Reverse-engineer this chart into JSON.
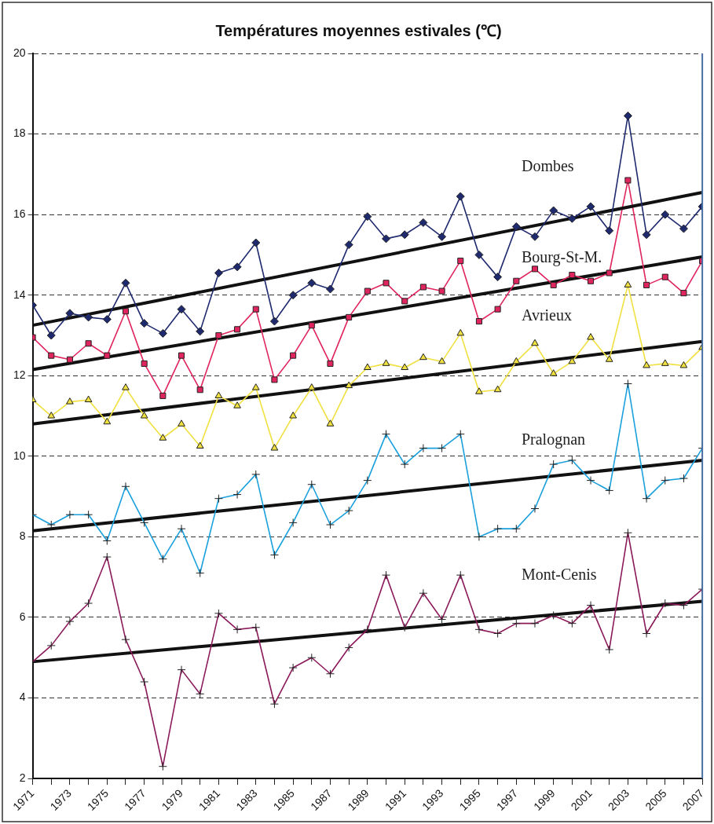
{
  "chart_data": {
    "type": "line",
    "title": "Températures moyennes estivales (℃)",
    "x": [
      1971,
      1972,
      1973,
      1974,
      1975,
      1976,
      1977,
      1978,
      1979,
      1980,
      1981,
      1982,
      1983,
      1984,
      1985,
      1986,
      1987,
      1988,
      1989,
      1990,
      1991,
      1992,
      1993,
      1994,
      1995,
      1996,
      1997,
      1998,
      1999,
      2000,
      2001,
      2002,
      2003,
      2004,
      2005,
      2006,
      2007
    ],
    "xlim": [
      1971,
      2007
    ],
    "xticks": [
      1971,
      {
        "value": 1972,
        "label": null
      },
      1973,
      {
        "value": 1974,
        "label": null
      },
      1975,
      {
        "value": 1976,
        "label": null
      },
      1977,
      {
        "value": 1978,
        "label": null
      },
      1979,
      {
        "value": 1980,
        "label": null
      },
      1981,
      {
        "value": 1982,
        "label": null
      },
      1983,
      {
        "value": 1984,
        "label": null
      },
      1985,
      {
        "value": 1986,
        "label": null
      },
      1987,
      {
        "value": 1988,
        "label": null
      },
      1989,
      {
        "value": 1990,
        "label": null
      },
      1991,
      {
        "value": 1992,
        "label": null
      },
      1993,
      {
        "value": 1994,
        "label": null
      },
      1995,
      {
        "value": 1996,
        "label": null
      },
      1997,
      {
        "value": 1998,
        "label": null
      },
      1999,
      {
        "value": 2000,
        "label": null
      },
      2001,
      {
        "value": 2002,
        "label": null
      },
      2003,
      {
        "value": 2004,
        "label": null
      },
      2005,
      {
        "value": 2006,
        "label": null
      },
      2007
    ],
    "ylim": [
      2,
      20
    ],
    "yticks": [
      2,
      4,
      6,
      8,
      10,
      12,
      14,
      16,
      18,
      20
    ],
    "grid": "y",
    "legend": false,
    "series": [
      {
        "name": "Dombes",
        "color": "#1f2a6e",
        "marker": "diamond",
        "values": [
          13.75,
          13.0,
          13.55,
          13.45,
          13.4,
          14.3,
          13.3,
          13.05,
          13.65,
          13.1,
          14.55,
          14.7,
          15.3,
          13.35,
          14.0,
          14.3,
          14.15,
          15.25,
          15.95,
          15.4,
          15.5,
          15.8,
          15.45,
          16.45,
          15.0,
          14.45,
          15.7,
          15.45,
          16.1,
          15.9,
          16.2,
          15.6,
          18.45,
          15.5,
          16.0,
          15.65,
          16.2
        ]
      },
      {
        "color": "#111111",
        "marker": "none",
        "values": [
          13.25,
          null,
          null,
          null,
          null,
          null,
          null,
          null,
          null,
          null,
          null,
          null,
          null,
          null,
          null,
          null,
          null,
          null,
          null,
          null,
          null,
          null,
          null,
          null,
          null,
          null,
          null,
          null,
          null,
          null,
          null,
          null,
          null,
          null,
          null,
          null,
          16.55
        ]
      },
      {
        "name": "Bourg-St-M.",
        "color": "#e0245e",
        "marker": "square",
        "values": [
          12.95,
          12.5,
          12.4,
          12.8,
          12.5,
          13.6,
          12.3,
          11.5,
          12.5,
          11.65,
          13.0,
          13.15,
          13.65,
          11.9,
          12.5,
          13.25,
          12.3,
          13.45,
          14.1,
          14.3,
          13.85,
          14.2,
          14.1,
          14.85,
          13.35,
          13.65,
          14.35,
          14.65,
          14.25,
          14.5,
          14.35,
          14.55,
          16.85,
          14.25,
          14.45,
          14.05,
          14.85
        ]
      },
      {
        "color": "#111111",
        "marker": "none",
        "values": [
          12.15,
          null,
          null,
          null,
          null,
          null,
          null,
          null,
          null,
          null,
          null,
          null,
          null,
          null,
          null,
          null,
          null,
          null,
          null,
          null,
          null,
          null,
          null,
          null,
          null,
          null,
          null,
          null,
          null,
          null,
          null,
          null,
          null,
          null,
          null,
          null,
          14.95
        ]
      },
      {
        "name": "Avrieux",
        "color": "#f0e040",
        "marker": "triangle",
        "values": [
          11.4,
          11.0,
          11.35,
          11.4,
          10.85,
          11.7,
          11.0,
          10.45,
          10.8,
          10.25,
          11.5,
          11.25,
          11.7,
          10.2,
          11.0,
          11.7,
          10.8,
          11.75,
          12.2,
          12.3,
          12.2,
          12.45,
          12.35,
          13.05,
          11.6,
          11.65,
          12.35,
          12.8,
          12.05,
          12.35,
          12.95,
          12.4,
          14.25,
          12.25,
          12.3,
          12.25,
          12.7
        ]
      },
      {
        "color": "#111111",
        "marker": "none",
        "values": [
          10.8,
          null,
          null,
          null,
          null,
          null,
          null,
          null,
          null,
          null,
          null,
          null,
          null,
          null,
          null,
          null,
          null,
          null,
          null,
          null,
          null,
          null,
          null,
          null,
          null,
          null,
          null,
          null,
          null,
          null,
          null,
          null,
          null,
          null,
          null,
          null,
          12.85
        ]
      },
      {
        "name": "Pralognan",
        "color": "#1aa0dc",
        "marker": "cross",
        "values": [
          8.55,
          8.3,
          8.55,
          8.55,
          7.9,
          9.25,
          8.35,
          7.45,
          8.2,
          7.1,
          8.95,
          9.05,
          9.55,
          7.55,
          8.35,
          9.3,
          8.3,
          8.65,
          9.4,
          10.55,
          9.8,
          10.2,
          10.2,
          10.55,
          8.0,
          8.2,
          8.2,
          8.7,
          9.8,
          9.9,
          9.4,
          9.15,
          11.8,
          8.95,
          9.4,
          9.45,
          10.2
        ]
      },
      {
        "color": "#111111",
        "marker": "none",
        "values": [
          8.15,
          null,
          null,
          null,
          null,
          null,
          null,
          null,
          null,
          null,
          null,
          null,
          null,
          null,
          null,
          null,
          null,
          null,
          null,
          null,
          null,
          null,
          null,
          null,
          null,
          null,
          null,
          null,
          null,
          null,
          null,
          null,
          null,
          null,
          null,
          null,
          9.9
        ]
      },
      {
        "name": "Mont-Cenis",
        "color": "#8b1a5a",
        "marker": "cross",
        "values": [
          4.9,
          5.3,
          5.9,
          6.35,
          7.5,
          5.45,
          4.4,
          2.3,
          4.7,
          4.1,
          6.1,
          5.7,
          5.75,
          3.85,
          4.75,
          5.0,
          4.6,
          5.25,
          5.7,
          7.05,
          5.75,
          6.6,
          5.95,
          7.05,
          5.7,
          5.6,
          5.85,
          5.85,
          6.05,
          5.85,
          6.3,
          5.2,
          8.1,
          5.6,
          6.35,
          6.3,
          6.7
        ]
      },
      {
        "color": "#111111",
        "marker": "none",
        "values": [
          4.9,
          null,
          null,
          null,
          null,
          null,
          null,
          null,
          null,
          null,
          null,
          null,
          null,
          null,
          null,
          null,
          null,
          null,
          null,
          null,
          null,
          null,
          null,
          null,
          null,
          null,
          null,
          null,
          null,
          null,
          null,
          null,
          null,
          null,
          null,
          null,
          6.4
        ]
      }
    ]
  }
}
